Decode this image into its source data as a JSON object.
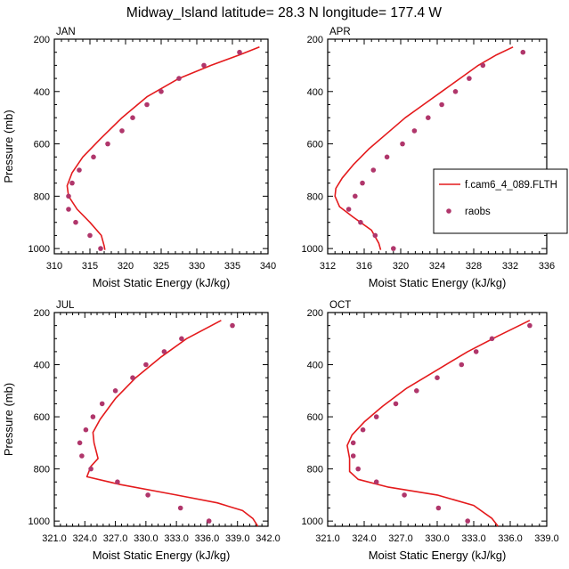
{
  "figure": {
    "title": "Midway_Island  latitude= 28.3 N longitude= 177.4 W"
  },
  "legend": {
    "entries": [
      {
        "label": "f.cam6_4_089.FLTH",
        "kind": "line",
        "color": "#e41a1c"
      },
      {
        "label": "raobs",
        "kind": "marker",
        "color": "#b0366b"
      }
    ]
  },
  "chart_data": [
    {
      "type": "line",
      "panel_label": "JAN",
      "xlabel": "Moist Static Energy (kJ/kg)",
      "ylabel": "Pressure (mb)",
      "xlim": [
        310,
        340
      ],
      "ylim": [
        1020,
        200
      ],
      "xticks": [
        310,
        315,
        320,
        325,
        330,
        335,
        340
      ],
      "xtick_labels": [
        "310",
        "315",
        "320",
        "325",
        "330",
        "335",
        "340"
      ],
      "yticks": [
        200,
        400,
        600,
        800,
        1000
      ],
      "ytick_labels": [
        "200",
        "400",
        "600",
        "800",
        "1000"
      ],
      "series": [
        {
          "name": "f.cam6_4_089.FLTH",
          "kind": "line",
          "x": [
            338.8,
            336.0,
            332.0,
            327.5,
            323.0,
            319.5,
            316.5,
            314.0,
            312.5,
            311.8,
            312.0,
            313.2,
            315.0,
            316.6,
            317.0,
            317.1
          ],
          "y": [
            230,
            260,
            300,
            350,
            420,
            500,
            580,
            650,
            710,
            760,
            800,
            850,
            900,
            950,
            990,
            1005
          ]
        },
        {
          "name": "raobs",
          "kind": "marker",
          "x": [
            336.0,
            331.0,
            327.5,
            325.0,
            323.0,
            321.0,
            319.5,
            317.5,
            315.5,
            313.5,
            312.5,
            312.0,
            312.0,
            313.0,
            315.0,
            316.5
          ],
          "y": [
            250,
            300,
            350,
            400,
            450,
            500,
            550,
            600,
            650,
            700,
            750,
            800,
            850,
            900,
            950,
            1000
          ]
        }
      ]
    },
    {
      "type": "line",
      "panel_label": "APR",
      "xlabel": "Moist Static Energy (kJ/kg)",
      "ylabel": "",
      "xlim": [
        312,
        336
      ],
      "ylim": [
        1020,
        200
      ],
      "xticks": [
        312,
        316,
        320,
        324,
        328,
        332,
        336
      ],
      "xtick_labels": [
        "312",
        "316",
        "320",
        "324",
        "328",
        "332",
        "336"
      ],
      "yticks": [
        200,
        400,
        600,
        800,
        1000
      ],
      "ytick_labels": [
        "200",
        "400",
        "600",
        "800",
        "1000"
      ],
      "series": [
        {
          "name": "f.cam6_4_089.FLTH",
          "kind": "line",
          "x": [
            332.3,
            330.5,
            328.5,
            326.5,
            324.5,
            322.5,
            320.5,
            318.5,
            316.5,
            314.8,
            313.6,
            312.9,
            312.8,
            313.3,
            314.8,
            316.8,
            317.6,
            317.8
          ],
          "y": [
            230,
            260,
            300,
            350,
            400,
            450,
            500,
            560,
            620,
            680,
            730,
            770,
            800,
            840,
            880,
            930,
            980,
            1005
          ]
        },
        {
          "name": "raobs",
          "kind": "marker",
          "x": [
            333.4,
            329.0,
            327.5,
            326.0,
            324.5,
            323.0,
            321.5,
            320.2,
            318.5,
            317.0,
            315.8,
            315.0,
            314.3,
            315.6,
            317.2,
            319.2
          ],
          "y": [
            250,
            300,
            350,
            400,
            450,
            500,
            550,
            600,
            650,
            700,
            750,
            800,
            850,
            900,
            950,
            1000
          ]
        }
      ]
    },
    {
      "type": "line",
      "panel_label": "JUL",
      "xlabel": "Moist Static Energy (kJ/kg)",
      "ylabel": "Pressure (mb)",
      "xlim": [
        321,
        342
      ],
      "ylim": [
        1020,
        200
      ],
      "xticks": [
        321,
        324,
        327,
        330,
        333,
        336,
        339,
        342
      ],
      "xtick_labels": [
        "321.0",
        "324.0",
        "327.0",
        "330.0",
        "333.0",
        "336.0",
        "339.0",
        "342.0"
      ],
      "yticks": [
        200,
        400,
        600,
        800,
        1000
      ],
      "ytick_labels": [
        "200",
        "400",
        "600",
        "800",
        "1000"
      ],
      "series": [
        {
          "name": "f.cam6_4_089.FLTH",
          "kind": "line",
          "x": [
            337.4,
            334.0,
            331.5,
            329.0,
            327.0,
            325.5,
            324.8,
            324.9,
            325.3,
            324.6,
            324.2,
            327.5,
            333.0,
            337.0,
            339.5,
            340.5,
            341.0
          ],
          "y": [
            230,
            300,
            370,
            450,
            530,
            610,
            660,
            700,
            760,
            790,
            830,
            860,
            900,
            930,
            960,
            990,
            1020
          ]
        },
        {
          "name": "raobs",
          "kind": "marker",
          "x": [
            338.5,
            333.5,
            331.8,
            330.0,
            328.7,
            327.0,
            325.7,
            324.8,
            324.1,
            323.5,
            323.7,
            324.6,
            327.2,
            330.2,
            333.4,
            336.2
          ],
          "y": [
            250,
            300,
            350,
            400,
            450,
            500,
            550,
            600,
            650,
            700,
            750,
            800,
            850,
            900,
            950,
            1000
          ]
        }
      ]
    },
    {
      "type": "line",
      "panel_label": "OCT",
      "xlabel": "Moist Static Energy (kJ/kg)",
      "ylabel": "",
      "xlim": [
        321,
        339
      ],
      "ylim": [
        1020,
        200
      ],
      "xticks": [
        321,
        324,
        327,
        330,
        333,
        336,
        339
      ],
      "xtick_labels": [
        "321.0",
        "324.0",
        "327.0",
        "330.0",
        "333.0",
        "336.0",
        "339.0"
      ],
      "yticks": [
        200,
        400,
        600,
        800,
        1000
      ],
      "ytick_labels": [
        "200",
        "400",
        "600",
        "800",
        "1000"
      ],
      "series": [
        {
          "name": "f.cam6_4_089.FLTH",
          "kind": "line",
          "x": [
            337.6,
            335.0,
            332.5,
            330.0,
            327.5,
            325.5,
            324.0,
            323.0,
            322.6,
            322.8,
            322.8,
            323.5,
            326.0,
            330.0,
            333.0,
            334.5,
            335.0
          ],
          "y": [
            230,
            290,
            350,
            420,
            490,
            560,
            620,
            670,
            710,
            760,
            810,
            840,
            870,
            900,
            940,
            990,
            1020
          ]
        },
        {
          "name": "raobs",
          "kind": "marker",
          "x": [
            337.6,
            334.5,
            333.2,
            332.0,
            330.0,
            328.3,
            326.6,
            325.0,
            323.9,
            323.1,
            323.1,
            323.5,
            325.0,
            327.3,
            330.1,
            332.5
          ],
          "y": [
            250,
            300,
            350,
            400,
            450,
            500,
            550,
            600,
            650,
            700,
            750,
            800,
            850,
            900,
            950,
            1000
          ]
        }
      ]
    }
  ]
}
